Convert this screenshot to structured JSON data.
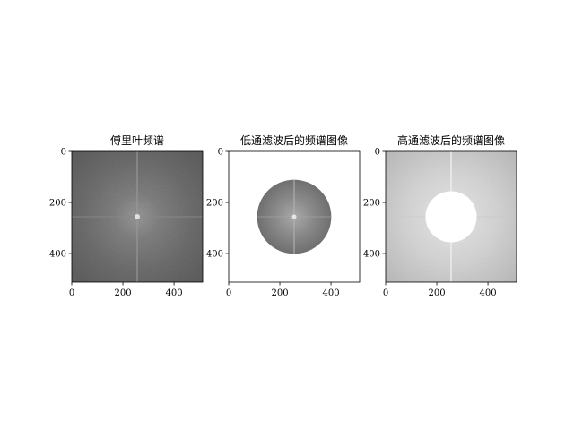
{
  "chart_data": [
    {
      "type": "heatmap",
      "title": "傅里叶频谱",
      "image_kind": "full",
      "xlim": [
        0,
        512
      ],
      "ylim": [
        512,
        0
      ],
      "xticks": [
        0,
        200,
        400
      ],
      "yticks": [
        0,
        200,
        400
      ],
      "center": [
        256,
        256
      ],
      "colormap": "gray"
    },
    {
      "type": "heatmap",
      "title": "低通滤波后的频谱图像",
      "image_kind": "lowpass",
      "xlim": [
        0,
        512
      ],
      "ylim": [
        512,
        0
      ],
      "xticks": [
        0,
        200,
        400
      ],
      "yticks": [
        0,
        200,
        400
      ],
      "center": [
        256,
        256
      ],
      "mask_radius": 145,
      "colormap": "gray"
    },
    {
      "type": "heatmap",
      "title": "高通滤波后的频谱图像",
      "image_kind": "highpass",
      "xlim": [
        0,
        512
      ],
      "ylim": [
        512,
        0
      ],
      "xticks": [
        0,
        200,
        400
      ],
      "yticks": [
        0,
        200,
        400
      ],
      "center": [
        256,
        256
      ],
      "mask_radius": 100,
      "colormap": "gray"
    }
  ]
}
